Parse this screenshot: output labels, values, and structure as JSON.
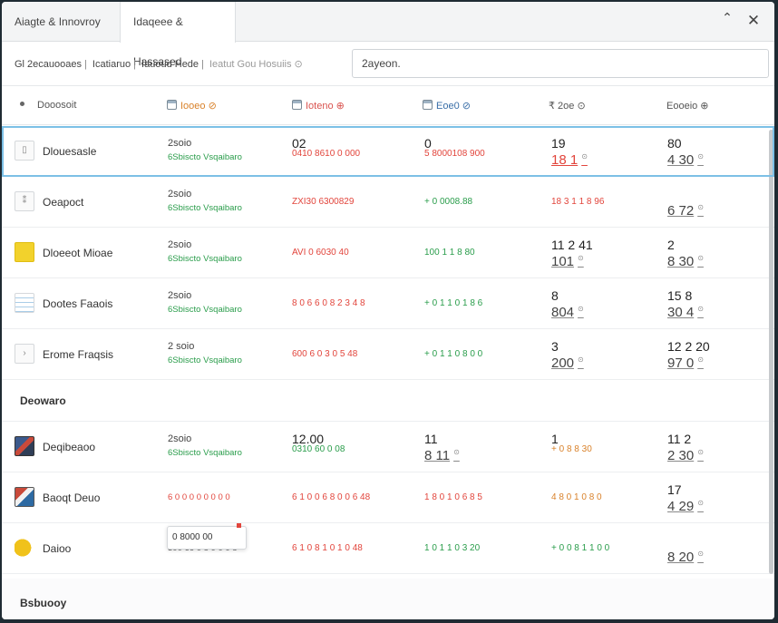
{
  "tabs": [
    "Aiagte & Innovroy",
    "Idaqeee & Hassased"
  ],
  "window": {
    "minimize": "⌃",
    "close": "✕"
  },
  "breadcrumb": [
    "Gl 2ecauooaes",
    "Icatiaruo",
    "Iauoud Hede",
    "Ieatut Gou Hosuiis ⊙"
  ],
  "search": {
    "value": "2ayeon."
  },
  "headers": {
    "c0": "Dooosoit",
    "c1": "Iooeo ⊘",
    "c2": "Ioteno ⊕",
    "c3": "Eoe0 ⊘",
    "c4": "₹ 2oe ⊙",
    "c5": "Eooeio ⊕"
  },
  "rows": [
    {
      "name": "Dlouesasle",
      "c1a": "2soio",
      "c1b": "6Sbiscto Vsqaibaro",
      "c2top": "02",
      "c2sub": "0410 8610 0 000",
      "c3top": "0",
      "c3sub": "5 8000108 900",
      "c4top": "19",
      "c4link": "18 1",
      "c5top": "80",
      "c5link": "4 30"
    },
    {
      "name": "Oeapoct",
      "c1a": "2soio",
      "c1b": "6Sbiscto Vsqaibaro",
      "c2mid": "ZXI30 6300829",
      "c3mid": "+ 0 0008.88",
      "c4mid": "18 3 1 1 8 96",
      "c5link": "6 72"
    },
    {
      "name": "Dloeeot Mioae",
      "c1a": "2soio",
      "c1b": "6Sbiscto Vsqaibaro",
      "c2mid": "AVI 0 6030 40",
      "c3mid": "100 1 1 8 80",
      "c4top": "11 2 41",
      "c4link": "101",
      "c5top": "2",
      "c5link": "8 30"
    },
    {
      "name": "Dootes Faaois",
      "c1a": "2soio",
      "c1b": "6Sbiscto Vsqaibaro",
      "c2mid": "8 0 6 6 0 8 2 3 4 8",
      "c3mid": "+ 0 1 1 0 1 8 6",
      "c4top": "8",
      "c4link": "804",
      "c5top": "15 8",
      "c5link": "30 4"
    },
    {
      "name": "Erome Fraqsis",
      "c1a": "2 soio",
      "c1b": "6Sbiscto Vsqaibaro",
      "c2mid": "600 6 0 3 0 5 48",
      "c3mid": "+ 0 1 1 0 8 0 0",
      "c4top": "3",
      "c4link": "200",
      "c5top": "12 2 20",
      "c5link": "97 0"
    }
  ],
  "section1": "Deowaro",
  "rows2": [
    {
      "name": "Deqibeaoo",
      "c1a": "2soio",
      "c1b": "6Sbiscto Vsqaibaro",
      "c2top": "12.00",
      "c2sub": "0310 60 0 08",
      "c3top": "11",
      "c3link": "8 11",
      "c4top": "1",
      "c4sub": "+ 0 8 8 30",
      "c5top": "11 2",
      "c5link": "2 30"
    },
    {
      "name": "Baoqt Deuo",
      "c1red": "6 0 0 0 0 0 0 0 0",
      "c2mid": "6 1 0 0 6 8 0 0 6 48",
      "c3mid": "1 8 0 1 0 6 8 5",
      "c4mid": "4 8 0 1 0 8 0",
      "c5top": "17",
      "c5link": "4 29"
    },
    {
      "name": "Daioo",
      "c1dark": "300 66 0 8 0 0 0 8",
      "tooltip": "0 8000 00",
      "c2mid": "6 1 0 8 1 0 1 0 48",
      "c3mid": "1 0 1 1 0 3 20",
      "c4mid": "+ 0 0 8 1 1 0 0",
      "c5link": "8 20"
    }
  ],
  "section2": "Bsbuooy",
  "colors": {
    "accent": "#7cc0e6",
    "red": "#e2453c",
    "green": "#2a9d4b"
  }
}
